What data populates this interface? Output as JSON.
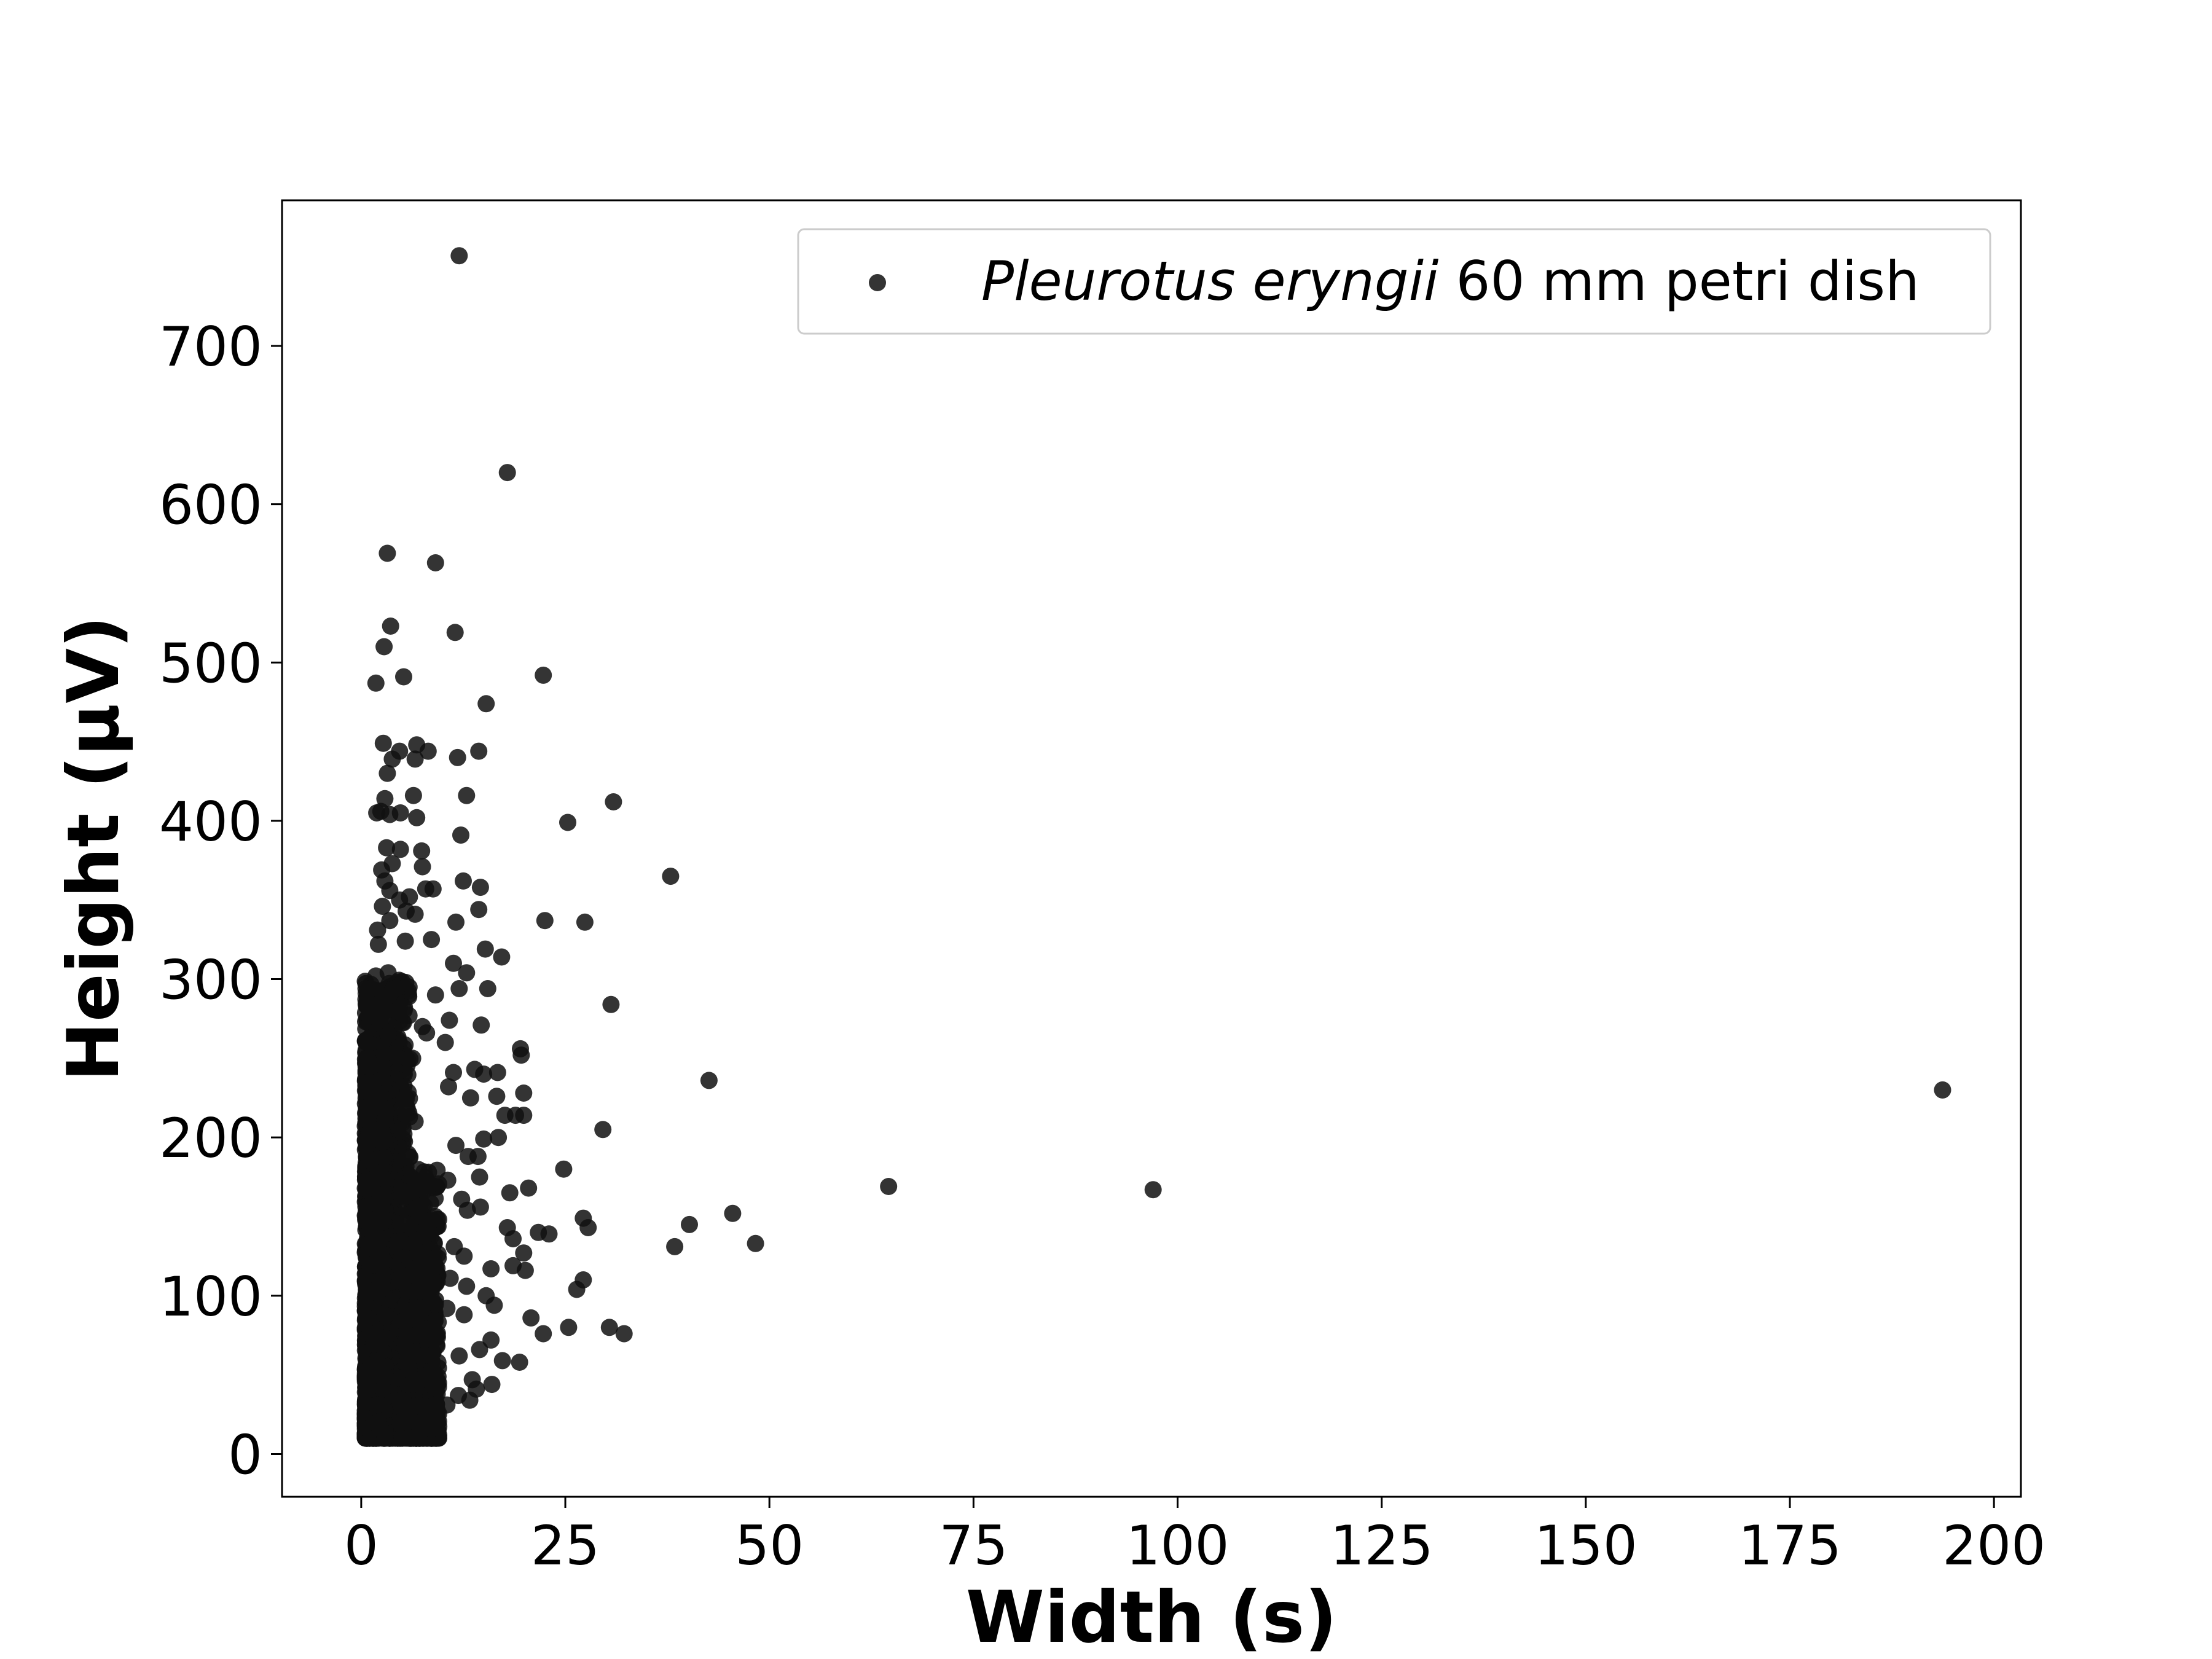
{
  "chart_data": {
    "type": "scatter",
    "xlabel": "Width (s)",
    "ylabel": "Height (µV)",
    "xlim": [
      -9.7,
      203.3
    ],
    "ylim": [
      -27,
      792
    ],
    "x_ticks": [
      0,
      25,
      50,
      75,
      100,
      125,
      150,
      175,
      200
    ],
    "y_ticks": [
      0,
      100,
      200,
      300,
      400,
      500,
      600,
      700
    ],
    "x_tick_labels": [
      "0",
      "25",
      "50",
      "75",
      "100",
      "125",
      "150",
      "175",
      "200"
    ],
    "y_tick_labels": [
      "0",
      "100",
      "200",
      "300",
      "400",
      "500",
      "600",
      "700"
    ],
    "grid": false,
    "legend": {
      "position": "top-right",
      "entries": [
        {
          "italic": "Pleurotus eryngii",
          "rest": " 60 mm petri dish"
        }
      ]
    },
    "marker_color": "#111111",
    "series": [
      {
        "name": "Pleurotus eryngii 60 mm petri dish",
        "note_dense_cluster": "Dense cluster of several thousand points at width 0.5–10 s, height 10–300 µV",
        "points": [
          [
            12.0,
            757
          ],
          [
            17.9,
            620
          ],
          [
            3.2,
            569
          ],
          [
            9.1,
            563
          ],
          [
            3.6,
            523
          ],
          [
            11.5,
            519
          ],
          [
            2.8,
            510
          ],
          [
            5.2,
            491
          ],
          [
            22.3,
            492
          ],
          [
            1.8,
            487
          ],
          [
            15.3,
            474
          ],
          [
            2.7,
            449
          ],
          [
            6.8,
            448
          ],
          [
            8.2,
            444
          ],
          [
            14.4,
            444
          ],
          [
            4.7,
            444
          ],
          [
            3.8,
            439
          ],
          [
            6.6,
            439
          ],
          [
            11.8,
            440
          ],
          [
            3.2,
            430
          ],
          [
            2.9,
            414
          ],
          [
            6.4,
            416
          ],
          [
            12.9,
            416
          ],
          [
            30.9,
            412
          ],
          [
            2.4,
            406
          ],
          [
            3.5,
            404
          ],
          [
            4.8,
            405
          ],
          [
            1.9,
            405
          ],
          [
            6.8,
            402
          ],
          [
            25.3,
            399
          ],
          [
            12.2,
            391
          ],
          [
            3.1,
            383
          ],
          [
            4.8,
            382
          ],
          [
            7.4,
            381
          ],
          [
            3.8,
            373
          ],
          [
            7.5,
            371
          ],
          [
            2.5,
            369
          ],
          [
            37.9,
            365
          ],
          [
            12.5,
            362
          ],
          [
            2.9,
            362
          ],
          [
            14.6,
            358
          ],
          [
            8.8,
            357
          ],
          [
            7.9,
            357
          ],
          [
            3.5,
            356
          ],
          [
            4.7,
            350
          ],
          [
            5.9,
            352
          ],
          [
            2.6,
            346
          ],
          [
            5.5,
            343
          ],
          [
            6.6,
            341
          ],
          [
            14.4,
            344
          ],
          [
            22.5,
            337
          ],
          [
            27.4,
            336
          ],
          [
            11.6,
            336
          ],
          [
            3.5,
            337
          ],
          [
            2.0,
            331
          ],
          [
            8.6,
            325
          ],
          [
            5.4,
            324
          ],
          [
            2.1,
            322
          ],
          [
            15.2,
            319
          ],
          [
            17.2,
            314
          ],
          [
            11.3,
            310
          ],
          [
            12.9,
            304
          ],
          [
            3.3,
            304
          ],
          [
            1.8,
            302
          ],
          [
            15.5,
            294
          ],
          [
            12.0,
            294
          ],
          [
            9.1,
            290
          ],
          [
            30.6,
            284
          ],
          [
            5.3,
            282
          ],
          [
            10.8,
            274
          ],
          [
            2.3,
            272
          ],
          [
            7.5,
            270
          ],
          [
            14.7,
            271
          ],
          [
            8.0,
            266
          ],
          [
            3.3,
            265
          ],
          [
            10.3,
            260
          ],
          [
            19.5,
            256
          ],
          [
            19.6,
            252
          ],
          [
            2.8,
            253
          ],
          [
            6.3,
            250
          ],
          [
            13.9,
            243
          ],
          [
            11.3,
            241
          ],
          [
            15.0,
            240
          ],
          [
            16.7,
            241
          ],
          [
            42.6,
            236
          ],
          [
            10.7,
            232
          ],
          [
            193.7,
            230
          ],
          [
            19.9,
            228
          ],
          [
            16.6,
            226
          ],
          [
            13.4,
            225
          ],
          [
            2.1,
            220
          ],
          [
            17.6,
            214
          ],
          [
            18.9,
            214
          ],
          [
            19.9,
            214
          ],
          [
            6.6,
            210
          ],
          [
            29.6,
            205
          ],
          [
            15.0,
            199
          ],
          [
            16.8,
            200
          ],
          [
            11.6,
            195
          ],
          [
            13.1,
            188
          ],
          [
            14.3,
            188
          ],
          [
            24.8,
            180
          ],
          [
            14.5,
            175
          ],
          [
            10.6,
            173
          ],
          [
            64.6,
            169
          ],
          [
            97.0,
            167
          ],
          [
            20.5,
            168
          ],
          [
            18.2,
            165
          ],
          [
            12.3,
            161
          ],
          [
            14.6,
            156
          ],
          [
            13.0,
            154
          ],
          [
            45.5,
            152
          ],
          [
            27.2,
            149
          ],
          [
            40.2,
            145
          ],
          [
            27.8,
            143
          ],
          [
            17.9,
            143
          ],
          [
            21.7,
            140
          ],
          [
            23.0,
            139
          ],
          [
            18.6,
            136
          ],
          [
            48.3,
            133
          ],
          [
            38.4,
            131
          ],
          [
            11.4,
            131
          ],
          [
            19.9,
            127
          ],
          [
            12.6,
            125
          ],
          [
            18.6,
            119
          ],
          [
            20.1,
            116
          ],
          [
            15.9,
            117
          ],
          [
            10.9,
            111
          ],
          [
            27.2,
            110
          ],
          [
            12.9,
            106
          ],
          [
            26.4,
            104
          ],
          [
            15.3,
            100
          ],
          [
            16.3,
            94
          ],
          [
            10.5,
            92
          ],
          [
            12.6,
            88
          ],
          [
            20.8,
            86
          ],
          [
            30.4,
            80
          ],
          [
            25.4,
            80
          ],
          [
            22.3,
            76
          ],
          [
            32.2,
            76
          ],
          [
            15.9,
            72
          ],
          [
            14.5,
            66
          ],
          [
            12.0,
            62
          ],
          [
            19.4,
            58
          ],
          [
            17.3,
            59
          ],
          [
            13.6,
            47
          ],
          [
            16.0,
            44
          ],
          [
            14.1,
            41
          ],
          [
            11.9,
            37
          ],
          [
            10.5,
            31
          ],
          [
            13.3,
            34
          ],
          [
            9.1,
            12
          ],
          [
            8.6,
            16
          ]
        ]
      }
    ]
  }
}
